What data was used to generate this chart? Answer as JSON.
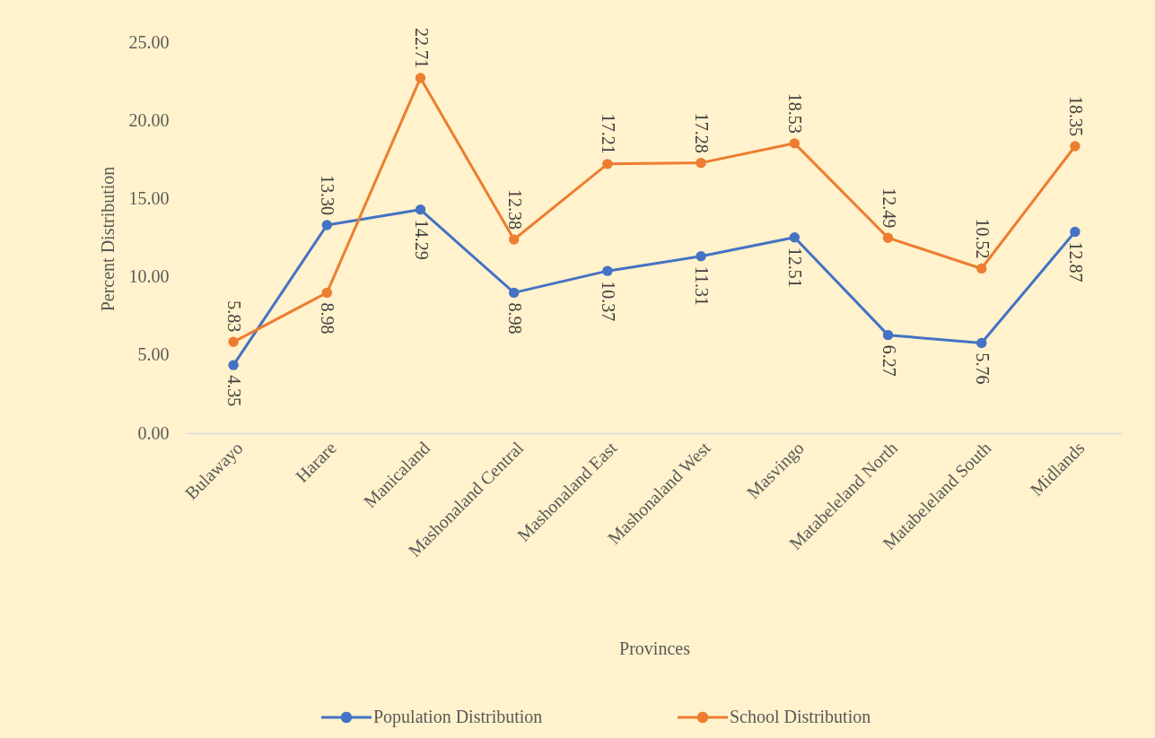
{
  "chart_data": {
    "type": "line",
    "xlabel": "Provinces",
    "ylabel": "Percent Distribution",
    "categories": [
      "Bulawayo",
      "Harare",
      "Manicaland",
      "Mashonaland Central",
      "Mashonaland East",
      "Mashonaland West",
      "Masvingo",
      "Matabeleland North",
      "Matabeleland South",
      "Midlands"
    ],
    "series": [
      {
        "name": "Population Distribution",
        "color": "#4472c4",
        "values": [
          4.35,
          13.3,
          14.29,
          8.98,
          10.37,
          11.31,
          12.51,
          6.27,
          5.76,
          12.87
        ],
        "value_labels": [
          "4.35",
          "13.30",
          "14.29",
          "8.98",
          "10.37",
          "11.31",
          "12.51",
          "6.27",
          "5.76",
          "12.87"
        ]
      },
      {
        "name": "School Distribution",
        "color": "#ed7d31",
        "values": [
          5.83,
          8.98,
          22.71,
          12.38,
          17.21,
          17.28,
          18.53,
          12.49,
          10.52,
          18.35
        ],
        "value_labels": [
          "5.83",
          "8.98",
          "22.71",
          "12.38",
          "17.21",
          "17.28",
          "18.53",
          "12.49",
          "10.52",
          "18.35"
        ]
      }
    ],
    "ylim": [
      0,
      25
    ],
    "yticks": [
      {
        "value": 0,
        "label": "0.00"
      },
      {
        "value": 5,
        "label": "5.00"
      },
      {
        "value": 10,
        "label": "10.00"
      },
      {
        "value": 15,
        "label": "15.00"
      },
      {
        "value": 20,
        "label": "20.00"
      },
      {
        "value": 25,
        "label": "25.00"
      }
    ],
    "grid": false,
    "legend": "bottom",
    "marker": "circle",
    "line_style": "solid"
  }
}
